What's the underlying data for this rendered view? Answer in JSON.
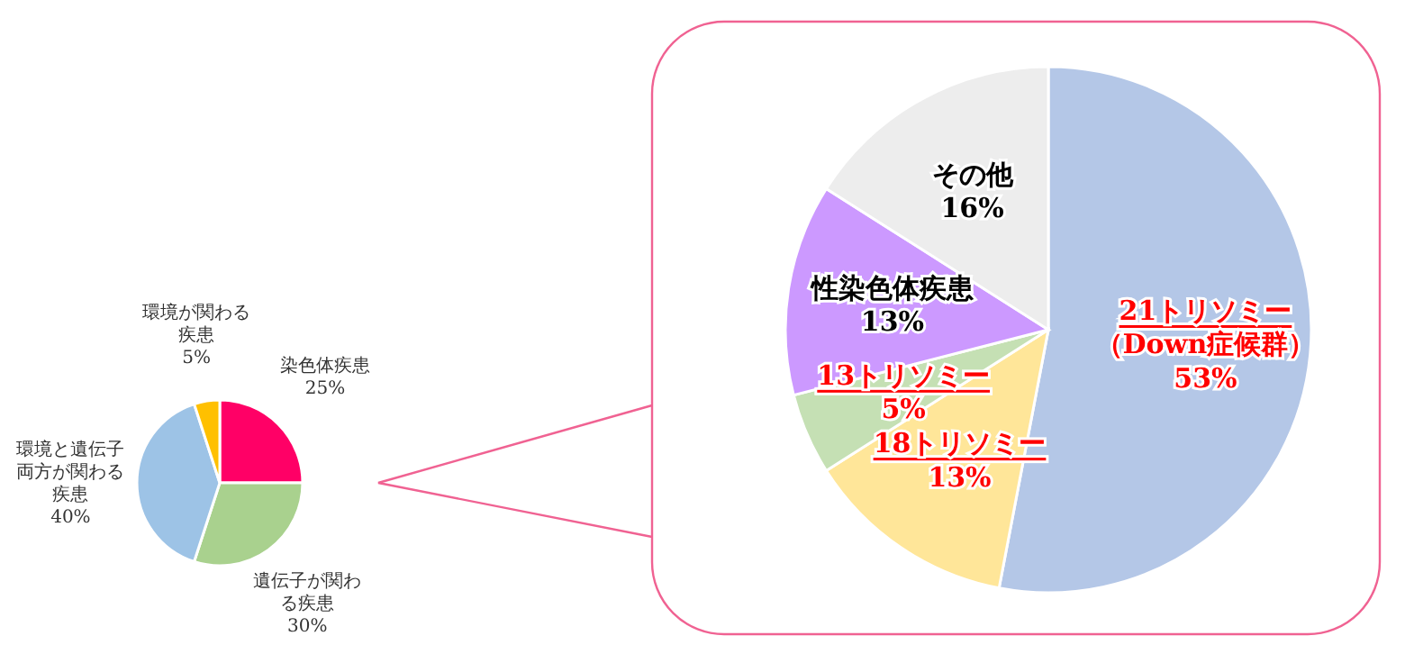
{
  "chart_data": [
    {
      "type": "pie",
      "categories": [
        "染色体疾患",
        "遺伝子が関わる疾患",
        "環境と遺伝子両方が関わる疾患",
        "環境が関わる疾患"
      ],
      "values": [
        25,
        30,
        40,
        5
      ],
      "value_labels": [
        "25%",
        "30%",
        "40%",
        "5%"
      ],
      "colors": [
        "#ff0066",
        "#a9d18e",
        "#9dc3e6",
        "#ffc000"
      ]
    },
    {
      "type": "pie",
      "categories": [
        "21トリソミー（Down症候群）",
        "18トリソミー",
        "13トリソミー",
        "性染色体疾患",
        "その他"
      ],
      "values": [
        53,
        13,
        5,
        13,
        16
      ],
      "value_labels": [
        "53%",
        "13%",
        "5%",
        "13%",
        "16%"
      ],
      "colors": [
        "#b4c7e7",
        "#ffe699",
        "#c5e0b4",
        "#cc99ff",
        "#ededed"
      ]
    }
  ]
}
